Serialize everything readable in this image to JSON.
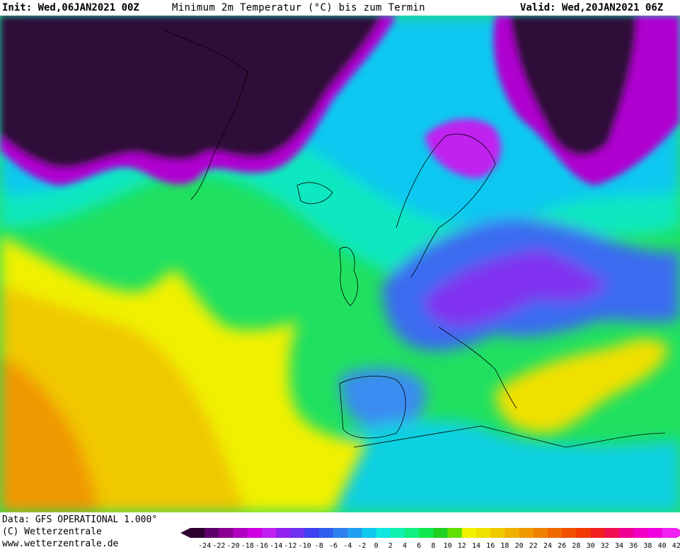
{
  "header": {
    "init": "Init: Wed,06JAN2021 00Z",
    "title": "Minimum 2m Temperatur (°C) bis zum Termin",
    "valid": "Valid: Wed,20JAN2021 06Z"
  },
  "footer": {
    "data": "Data: GFS OPERATIONAL 1.000°",
    "copyright": "(C) Wetterzentrale",
    "url": "www.wetterzentrale.de"
  },
  "legend": {
    "labels": [
      "-24",
      "-22",
      "-20",
      "-18",
      "-16",
      "-14",
      "-12",
      "-10",
      "-8",
      "-6",
      "-4",
      "-2",
      "0",
      "2",
      "4",
      "6",
      "8",
      "10",
      "12",
      "14",
      "16",
      "18",
      "20",
      "22",
      "24",
      "26",
      "28",
      "30",
      "32",
      "34",
      "36",
      "38",
      "40",
      "42"
    ],
    "colors": [
      "#2e0030",
      "#5e006a",
      "#8a0090",
      "#b000c0",
      "#d000e0",
      "#c020f0",
      "#9020f0",
      "#7030f0",
      "#4040f0",
      "#3060f0",
      "#3080f0",
      "#20a0f0",
      "#10c8f0",
      "#10e8e0",
      "#10f0b0",
      "#10f080",
      "#10e850",
      "#20d020",
      "#60e000",
      "#f0f000",
      "#f0e000",
      "#f0c800",
      "#f0b000",
      "#f09800",
      "#f08000",
      "#f06800",
      "#f05000",
      "#f03800",
      "#f02020",
      "#f01050",
      "#f00090",
      "#f000c0",
      "#f000e0",
      "#f020f0"
    ]
  },
  "colors": {
    "deep_cold": "#2e0a38",
    "magenta": "#d000e0",
    "purple": "#8030f0",
    "blue": "#3a6cf0",
    "cyan": "#10c8f0",
    "teal": "#10e8b0",
    "green": "#10e060",
    "lime": "#40d820",
    "yellow": "#f0f000",
    "gold": "#f0c800",
    "orange": "#f09800"
  }
}
